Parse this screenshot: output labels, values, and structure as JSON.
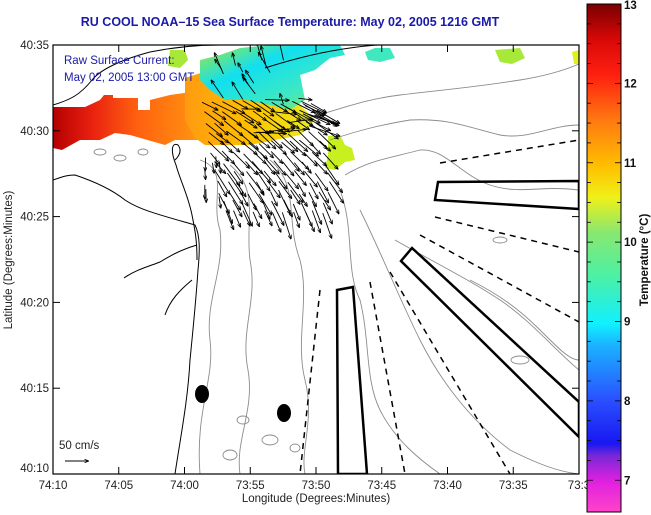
{
  "title": "RU COOL  NOAA–15  Sea Surface Temperature:  May 02, 2005 1216 GMT",
  "annotation": {
    "line1": "Raw Surface Current:",
    "line2": "May 02, 2005 13:00 GMT"
  },
  "scale_arrow_label": "50 cm/s",
  "chart_data": {
    "type": "heatmap",
    "title": "RU COOL  NOAA-15  Sea Surface Temperature:  May 02, 2005 1216 GMT",
    "xlabel": "Longitude (Degrees:Minutes)",
    "ylabel": "Latitude (Degrees:Minutes)",
    "x_ticks": [
      "74:10",
      "74:05",
      "74:00",
      "73:55",
      "73:50",
      "73:45",
      "73:40",
      "73:35",
      "73:3"
    ],
    "y_ticks": [
      "40:10",
      "40:15",
      "40:20",
      "40:25",
      "40:30",
      "40:35"
    ],
    "xlim_minutes": [
      -4450,
      -4410
    ],
    "ylim": [
      "40:10",
      "40:35"
    ],
    "colorbar": {
      "label": "Temperature (°C)",
      "range": [
        6.6,
        13
      ],
      "ticks": [
        "13",
        "12",
        "11",
        "10",
        "9",
        "8",
        "7"
      ],
      "colormap": "jet-like with magenta low end"
    },
    "overlay": {
      "type": "vector field",
      "name": "Raw Surface Current",
      "time": "May 02, 2005 13:00 GMT",
      "reference_vector": "50 cm/s",
      "dominant_direction": "southeast (offshore) from harbor mouth"
    },
    "sst_regions": [
      {
        "area": "western nearshore band near 40:30",
        "temp_c": [
          11.5,
          12.9
        ]
      },
      {
        "area": "harbor mouth / apex",
        "temp_c": [
          10.5,
          11.3
        ]
      },
      {
        "area": "north near 40:33",
        "temp_c": [
          9.0,
          9.8
        ]
      },
      {
        "area": "offshore patch near 40:28",
        "temp_c": [
          10.3,
          10.6
        ]
      }
    ],
    "markers": [
      {
        "type": "filled ellipse",
        "lat": "40:14.5",
        "lon": "73:58.7"
      },
      {
        "type": "filled ellipse",
        "lat": "40:13.5",
        "lon": "73:52.4"
      }
    ]
  },
  "colors": {
    "title": "#1a1aa8",
    "annotation": "#1a1aa8",
    "coast": "#000000",
    "bathymetry": "#8c8c8c"
  }
}
